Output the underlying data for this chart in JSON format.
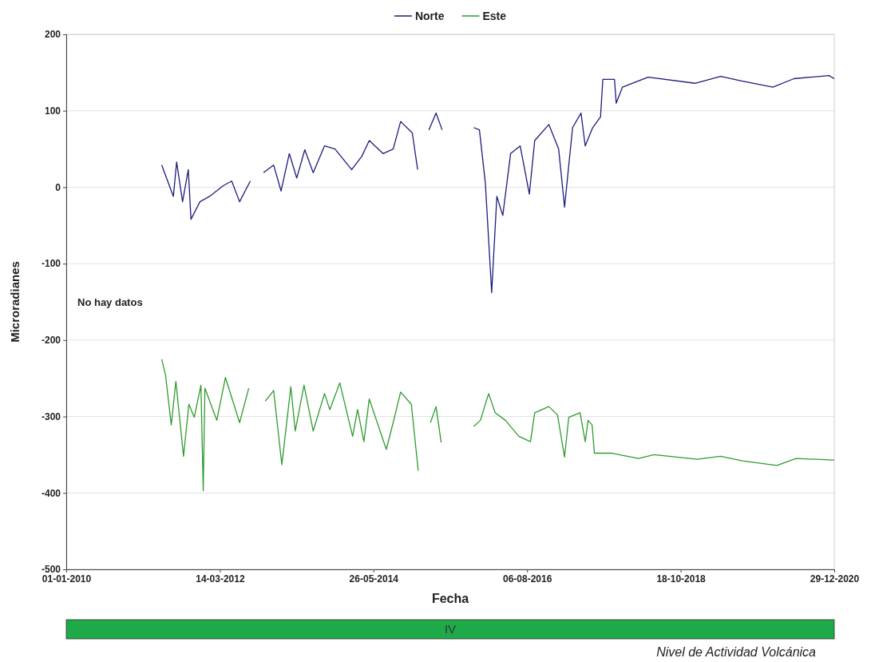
{
  "chart_data": {
    "type": "line",
    "xlabel": "Fecha",
    "ylabel": "Microradianes",
    "xlim": [
      "2010-01-01",
      "2020-12-29"
    ],
    "xticks": [
      {
        "value": "2010-01-01",
        "label": "01-01-2010"
      },
      {
        "value": "2012-03-14",
        "label": "14-03-2012"
      },
      {
        "value": "2014-05-26",
        "label": "26-05-2014"
      },
      {
        "value": "2016-08-06",
        "label": "06-08-2016"
      },
      {
        "value": "2018-10-18",
        "label": "18-10-2018"
      },
      {
        "value": "2020-12-29",
        "label": "29-12-2020"
      }
    ],
    "ylim": [
      -500,
      200
    ],
    "yticks": [
      -500,
      -400,
      -300,
      -200,
      -100,
      0,
      100,
      200
    ],
    "grid": "y",
    "legend": "top",
    "marker": "none",
    "line_style": "solid",
    "annotations": [
      "No hay datos",
      "IV",
      "Nivel de Actividad Volcánica"
    ],
    "series": [
      {
        "name": "Norte",
        "color": "#1c1c7c",
        "x": [
          "2011-05-15",
          "2011-07-15",
          "2011-08-01",
          "2011-09-01",
          "2011-10-01",
          "2011-10-15",
          "2011-12-01",
          "2012-01-20",
          "2012-04-01",
          "2012-05-15",
          "2012-06-25",
          "2012-08-20",
          "2012-10-01",
          "2012-10-28",
          "2012-12-20",
          "2013-01-28",
          "2013-03-12",
          "2013-04-20",
          "2013-06-01",
          "2013-07-15",
          "2013-09-12",
          "2013-11-06",
          "2014-02-01",
          "2014-03-25",
          "2014-05-04",
          "2014-07-15",
          "2014-09-06",
          "2014-10-15",
          "2014-12-15",
          "2015-01-12",
          "2015-02-10",
          "2015-03-12",
          "2015-04-18",
          "2015-05-20",
          "2015-09-01",
          "2015-11-01",
          "2015-12-01",
          "2016-01-01",
          "2016-02-03",
          "2016-03-01",
          "2016-04-01",
          "2016-05-12",
          "2016-07-01",
          "2016-08-18",
          "2016-09-15",
          "2016-11-28",
          "2017-01-18",
          "2017-02-18",
          "2017-04-01",
          "2017-05-15",
          "2017-06-06",
          "2017-07-15",
          "2017-08-25",
          "2017-09-06",
          "2017-11-06",
          "2017-11-15",
          "2017-12-18",
          "2018-05-01",
          "2019-01-01",
          "2019-05-15",
          "2019-09-01",
          "2020-02-12",
          "2020-06-01",
          "2020-12-01",
          "2020-12-29"
        ],
        "values": [
          29,
          -12,
          33,
          -19,
          23,
          -42,
          -19,
          -12,
          2,
          8,
          -19,
          8,
          null,
          19,
          29,
          -5,
          44,
          12,
          49,
          19,
          54,
          50,
          23,
          40,
          61,
          44,
          50,
          86,
          71,
          23,
          null,
          75,
          97,
          75,
          null,
          78,
          75,
          5,
          -138,
          -12,
          -37,
          44,
          54,
          -9,
          61,
          82,
          50,
          -26,
          78,
          97,
          54,
          78,
          92,
          141,
          141,
          110,
          131,
          144,
          136,
          145,
          139,
          131,
          142,
          146,
          142
        ]
      },
      {
        "name": "Este",
        "color": "#2e9b2e",
        "x": [
          "2011-05-15",
          "2011-06-04",
          "2011-07-04",
          "2011-07-28",
          "2011-09-06",
          "2011-10-04",
          "2011-11-01",
          "2011-12-06",
          "2011-12-18",
          "2011-12-27",
          "2012-02-27",
          "2012-04-12",
          "2012-06-25",
          "2012-08-12",
          "2012-09-20",
          "2012-11-06",
          "2012-12-20",
          "2013-02-01",
          "2013-03-20",
          "2013-04-12",
          "2013-05-28",
          "2013-07-15",
          "2013-09-12",
          "2013-10-10",
          "2013-12-01",
          "2014-02-06",
          "2014-03-04",
          "2014-04-06",
          "2014-05-04",
          "2014-08-01",
          "2014-09-06",
          "2014-10-15",
          "2014-12-10",
          "2015-01-15",
          "2015-02-10",
          "2015-03-20",
          "2015-04-18",
          "2015-05-15",
          "2015-09-01",
          "2015-11-01",
          "2015-12-06",
          "2016-01-18",
          "2016-02-21",
          "2016-04-15",
          "2016-06-24",
          "2016-08-24",
          "2016-09-15",
          "2016-11-28",
          "2017-01-12",
          "2017-02-18",
          "2017-03-12",
          "2017-05-10",
          "2017-06-06",
          "2017-06-21",
          "2017-07-12",
          "2017-07-24",
          "2017-10-24",
          "2018-03-12",
          "2018-06-01",
          "2019-01-12",
          "2019-05-15",
          "2019-09-06",
          "2020-03-04",
          "2020-06-12",
          "2020-12-29"
        ],
        "values": [
          -225,
          -246,
          -311,
          -254,
          -352,
          -284,
          -301,
          -259,
          -397,
          -263,
          -305,
          -249,
          -308,
          -263,
          null,
          -280,
          -266,
          -363,
          -261,
          -319,
          -259,
          -319,
          -270,
          -291,
          -256,
          -326,
          -291,
          -333,
          -277,
          -343,
          -308,
          -268,
          -284,
          -371,
          null,
          -308,
          -287,
          -334,
          null,
          -313,
          -305,
          -270,
          -295,
          -305,
          -326,
          -333,
          -295,
          -287,
          -298,
          -353,
          -301,
          -295,
          -333,
          -305,
          -311,
          -348,
          -348,
          -355,
          -350,
          -356,
          -352,
          -358,
          -364,
          -355,
          -357
        ]
      }
    ]
  }
}
